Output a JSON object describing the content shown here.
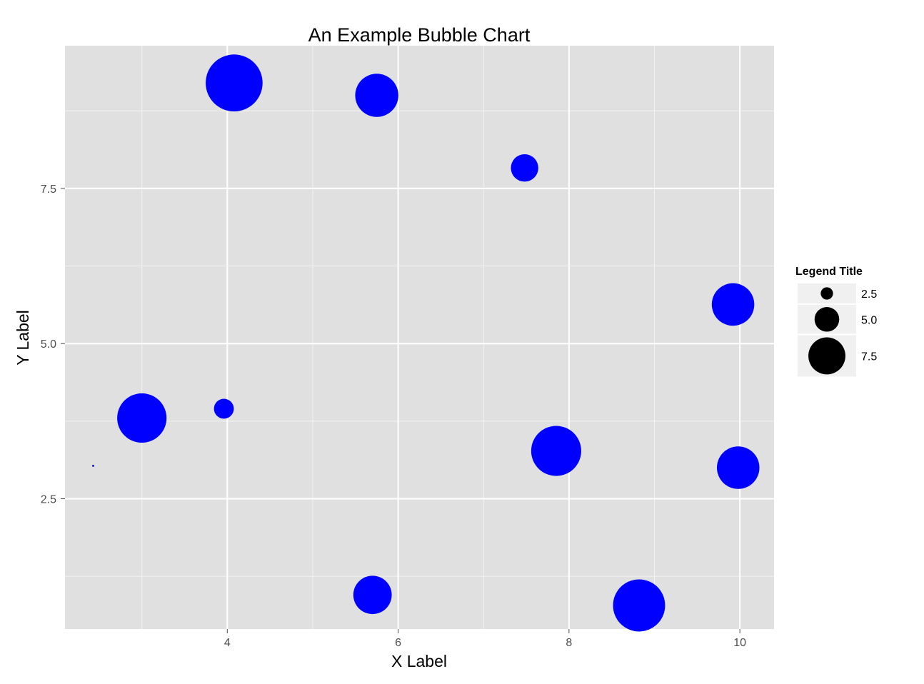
{
  "chart_data": {
    "type": "scatter",
    "title": "An Example Bubble Chart",
    "xlabel": "X Label",
    "ylabel": "Y Label",
    "xlim": [
      2.1,
      10.4
    ],
    "ylim": [
      0.4,
      9.8
    ],
    "x_ticks": [
      4,
      6,
      8,
      10
    ],
    "x_tick_labels": [
      "4",
      "6",
      "8",
      "10"
    ],
    "y_ticks": [
      2.5,
      5.0,
      7.5
    ],
    "y_tick_labels": [
      "2.5",
      "5.0",
      "7.5"
    ],
    "x_minor": [
      3,
      5,
      7,
      9
    ],
    "y_minor": [
      1.25,
      3.75,
      6.25,
      8.75
    ],
    "grid": true,
    "bubble_color": "#0000ff",
    "panel_background": "#e0e0e0",
    "legend": {
      "title": "Legend Title",
      "placement": "right",
      "entries": [
        {
          "label": "2.5",
          "size": 2.5
        },
        {
          "label": "5.0",
          "size": 5.0
        },
        {
          "label": "7.5",
          "size": 7.5
        }
      ]
    },
    "points": [
      {
        "x": 2.43,
        "y": 3.03,
        "size": 0.3
      },
      {
        "x": 3.0,
        "y": 3.8,
        "size": 7.2
      },
      {
        "x": 3.96,
        "y": 3.95,
        "size": 2.9
      },
      {
        "x": 4.08,
        "y": 9.2,
        "size": 8.3
      },
      {
        "x": 5.75,
        "y": 9.0,
        "size": 6.3
      },
      {
        "x": 5.7,
        "y": 0.95,
        "size": 5.6
      },
      {
        "x": 7.48,
        "y": 7.83,
        "size": 4.0
      },
      {
        "x": 7.85,
        "y": 3.27,
        "size": 7.3
      },
      {
        "x": 8.82,
        "y": 0.78,
        "size": 7.6
      },
      {
        "x": 9.92,
        "y": 5.63,
        "size": 6.2
      },
      {
        "x": 9.98,
        "y": 3.0,
        "size": 6.2
      }
    ]
  }
}
